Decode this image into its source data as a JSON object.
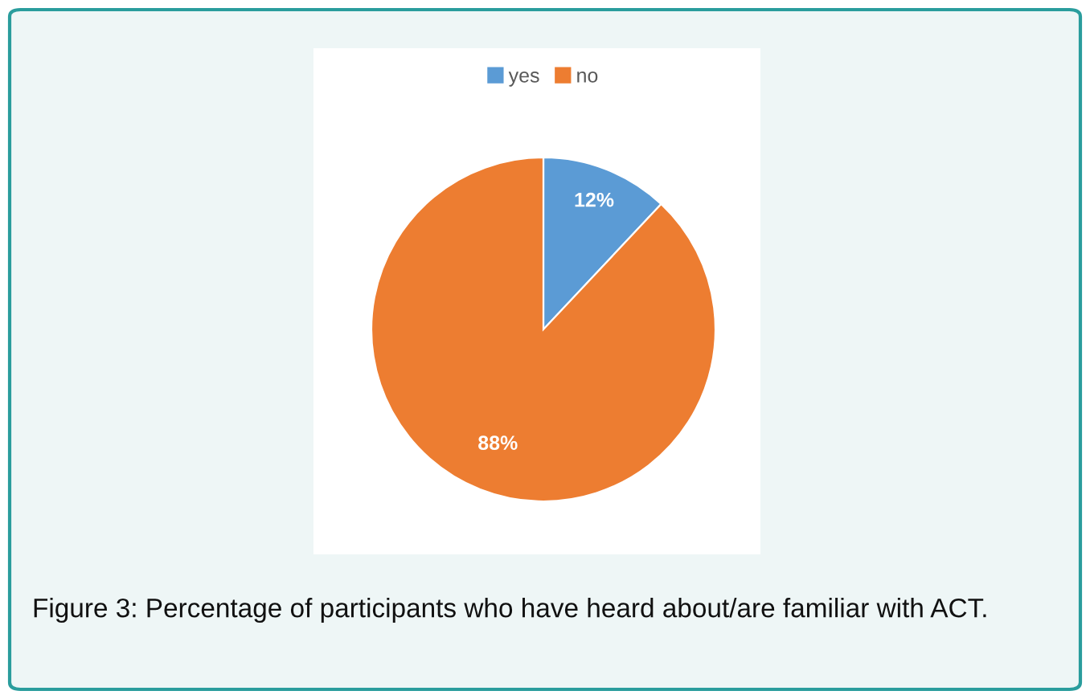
{
  "chart_data": {
    "type": "pie",
    "categories": [
      "yes",
      "no"
    ],
    "values": [
      12,
      88
    ],
    "colors": [
      "#5b9bd5",
      "#ed7d31"
    ],
    "value_labels": [
      "12%",
      "88%"
    ],
    "legend": "top",
    "annotations": [
      "Figure 3: Percentage of participants who have heard about/are familiar with ACT."
    ]
  }
}
